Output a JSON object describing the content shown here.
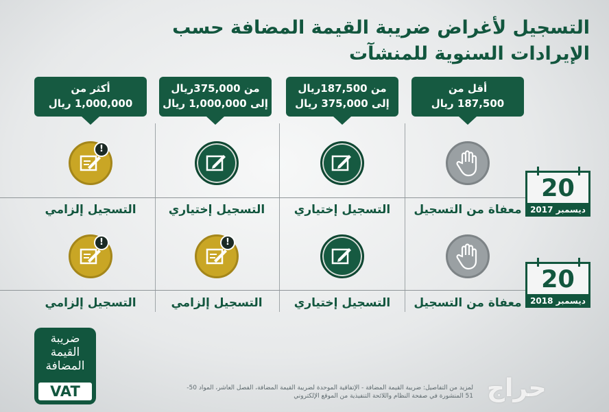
{
  "title": "التسجيل لأغراض ضريبة القيمة المضافة حسب الإيرادات السنوية للمنشآت",
  "tiers": [
    {
      "line1": "أكثر من",
      "line2": "1,000,000 ريال"
    },
    {
      "line1": "من 375,000ريال",
      "line2": "إلى 1,000,000 ريال"
    },
    {
      "line1": "من 187,500ريال",
      "line2": "إلى 375,000 ريال"
    },
    {
      "line1": "أقل من",
      "line2": "187,500 ريال"
    }
  ],
  "rows": [
    {
      "calendar": {
        "day": "20",
        "label": "ديسمبر 2017"
      },
      "cells": [
        {
          "label": "التسجيل إلزامي",
          "icon": "clipboard-alert-icon",
          "style": "gold"
        },
        {
          "label": "التسجيل إختياري",
          "icon": "pencil-check-icon",
          "style": "green"
        },
        {
          "label": "التسجيل إختياري",
          "icon": "pencil-check-icon",
          "style": "green"
        },
        {
          "label": "معفاة من التسجيل",
          "icon": "stop-hand-icon",
          "style": "gray"
        }
      ]
    },
    {
      "calendar": {
        "day": "20",
        "label": "ديسمبر 2018"
      },
      "cells": [
        {
          "label": "التسجيل إلزامي",
          "icon": "clipboard-alert-icon",
          "style": "gold"
        },
        {
          "label": "التسجيل إلزامي",
          "icon": "clipboard-alert-icon",
          "style": "gold"
        },
        {
          "label": "التسجيل إختياري",
          "icon": "pencil-check-icon",
          "style": "green"
        },
        {
          "label": "معفاة من التسجيل",
          "icon": "stop-hand-icon",
          "style": "gray"
        }
      ]
    }
  ],
  "logo": {
    "line1": "ضريبة",
    "line2": "القيمة",
    "line3": "المضافة",
    "vat": "VAT"
  },
  "source": "لمزيد من التفاصيل: ضريبة القيمة المضافة - الإتفاقية الموحدة لضريبة القيمة المضافة، الفصل العاشر، المواد 50-51 المنشورة في صفحة النظام واللائحة التنفيذية من الموقع الإلكتروني",
  "watermark": "حراج",
  "colors": {
    "green": "#165a41",
    "gold": "#c9a625",
    "gray": "#9aa0a3"
  }
}
